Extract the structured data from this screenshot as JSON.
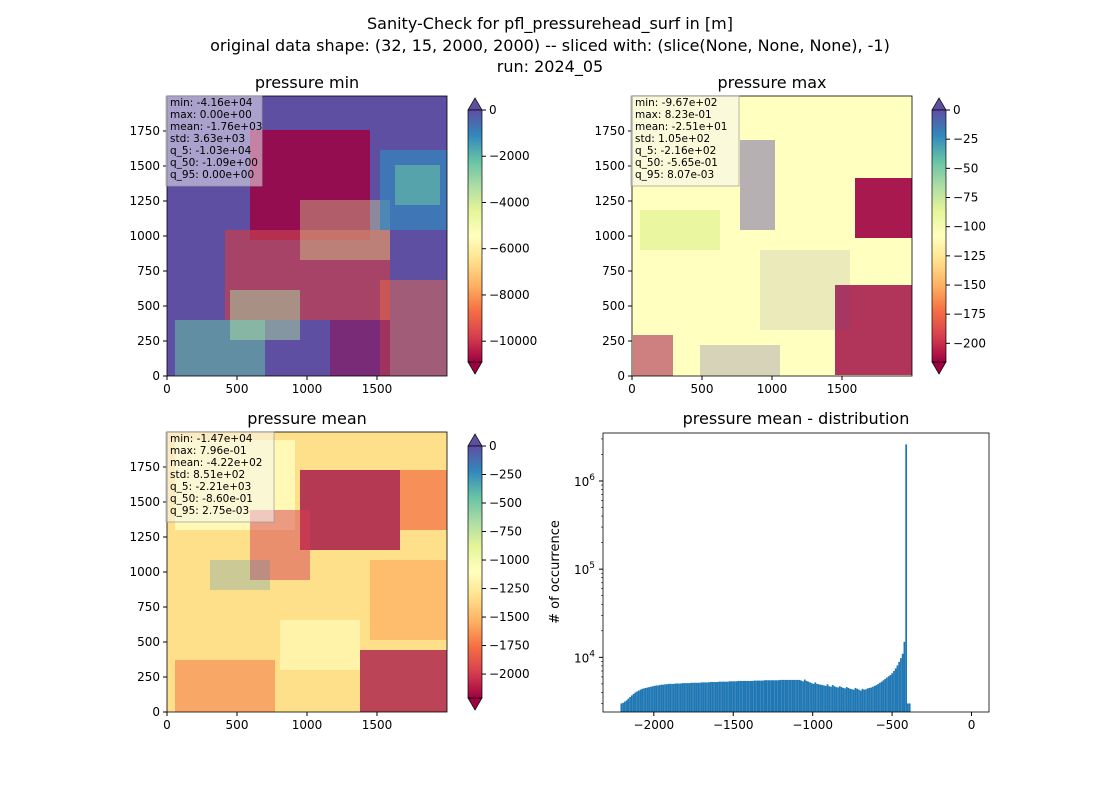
{
  "figure": {
    "title_lines": [
      "Sanity-Check for pfl_pressurehead_surf in [m]",
      "original data shape: (32, 15, 2000, 2000) -- sliced with: (slice(None, None, None), -1)",
      "run: 2024_05"
    ]
  },
  "colors": {
    "colormap": "Spectral",
    "cmap_stops": [
      "#9e0142",
      "#d53e4f",
      "#f46d43",
      "#fdae61",
      "#fee08b",
      "#ffffbf",
      "#e6f598",
      "#abdda4",
      "#66c2a5",
      "#3288bd",
      "#5e4fa2"
    ],
    "hist_bar": "#1f77b4",
    "stat_box_bg": "#f5f5f5"
  },
  "chart_data": [
    {
      "type": "heatmap",
      "title": "pressure min",
      "x_range": [
        0,
        2000
      ],
      "y_range": [
        0,
        2000
      ],
      "x_ticks": [
        "0",
        "500",
        "1000",
        "1500"
      ],
      "y_ticks": [
        "0",
        "250",
        "500",
        "750",
        "1000",
        "1250",
        "1500",
        "1750"
      ],
      "colorbar": {
        "range": [
          -10900,
          0
        ],
        "ticks": [
          {
            "value": 0,
            "label": "0"
          },
          {
            "value": -2000,
            "label": "−2000"
          },
          {
            "value": -4000,
            "label": "−4000"
          },
          {
            "value": -6000,
            "label": "−6000"
          },
          {
            "value": -8000,
            "label": "−8000"
          },
          {
            "value": -10000,
            "label": "−10000"
          }
        ],
        "extend": "both"
      },
      "stats": [
        "min: -4.16e+04",
        "max: 0.00e+00",
        "mean: -1.76e+03",
        "std: 3.63e+03",
        "q_5: -1.03e+04",
        "q_50: -1.09e+00",
        "q_95: 0.00e+00"
      ]
    },
    {
      "type": "heatmap",
      "title": "pressure max",
      "x_range": [
        0,
        2000
      ],
      "y_range": [
        0,
        2000
      ],
      "x_ticks": [
        "0",
        "500",
        "1000",
        "1500"
      ],
      "y_ticks": [
        "0",
        "250",
        "500",
        "750",
        "1000",
        "1250",
        "1500",
        "1750"
      ],
      "colorbar": {
        "range": [
          -216,
          0
        ],
        "ticks": [
          {
            "value": 0,
            "label": "0"
          },
          {
            "value": -25,
            "label": "−25"
          },
          {
            "value": -50,
            "label": "−50"
          },
          {
            "value": -75,
            "label": "−75"
          },
          {
            "value": -100,
            "label": "−100"
          },
          {
            "value": -125,
            "label": "−125"
          },
          {
            "value": -150,
            "label": "−150"
          },
          {
            "value": -175,
            "label": "−175"
          },
          {
            "value": -200,
            "label": "−200"
          }
        ],
        "extend": "both"
      },
      "stats": [
        "min: -9.67e+02",
        "max: 8.23e-01",
        "mean: -2.51e+01",
        "std: 1.05e+02",
        "q_5: -2.16e+02",
        "q_50: -5.65e-01",
        "q_95: 8.07e-03"
      ]
    },
    {
      "type": "heatmap",
      "title": "pressure mean",
      "x_range": [
        0,
        2000
      ],
      "y_range": [
        0,
        2000
      ],
      "x_ticks": [
        "0",
        "500",
        "1000",
        "1500"
      ],
      "y_ticks": [
        "0",
        "250",
        "500",
        "750",
        "1000",
        "1250",
        "1500",
        "1750"
      ],
      "colorbar": {
        "range": [
          -2210,
          0
        ],
        "ticks": [
          {
            "value": 0,
            "label": "0"
          },
          {
            "value": -250,
            "label": "−250"
          },
          {
            "value": -500,
            "label": "−500"
          },
          {
            "value": -750,
            "label": "−750"
          },
          {
            "value": -1000,
            "label": "−1000"
          },
          {
            "value": -1250,
            "label": "−1250"
          },
          {
            "value": -1500,
            "label": "−1500"
          },
          {
            "value": -1750,
            "label": "−1750"
          },
          {
            "value": -2000,
            "label": "−2000"
          }
        ],
        "extend": "both"
      },
      "stats": [
        "min: -1.47e+04",
        "max: 7.96e-01",
        "mean: -4.22e+02",
        "std: 8.51e+02",
        "q_5: -2.21e+03",
        "q_50: -8.60e-01",
        "q_95: 2.75e-03"
      ]
    },
    {
      "type": "bar",
      "subtype": "histogram",
      "title": "pressure mean - distribution",
      "ylabel": "# of occurrence",
      "yscale": "log",
      "xlim": [
        -2320,
        110
      ],
      "ylim": [
        2400,
        3500000
      ],
      "x_ticks": [
        {
          "value": -2000,
          "label": "−2000"
        },
        {
          "value": -1500,
          "label": "−1500"
        },
        {
          "value": -1000,
          "label": "−1000"
        },
        {
          "value": -500,
          "label": "−500"
        },
        {
          "value": 0,
          "label": "0"
        }
      ],
      "y_ticks": [
        {
          "value": 10000,
          "base": "10",
          "exp": "4"
        },
        {
          "value": 100000,
          "base": "10",
          "exp": "5"
        },
        {
          "value": 1000000,
          "base": "10",
          "exp": "6"
        }
      ],
      "bin_start": -2210,
      "bin_width": 11,
      "counts": [
        3000,
        3050,
        3150,
        3250,
        3400,
        3550,
        3700,
        3850,
        4000,
        4100,
        4200,
        4300,
        4400,
        4450,
        4500,
        4550,
        4600,
        4650,
        4700,
        4750,
        4800,
        4800,
        4850,
        4900,
        4900,
        4950,
        4950,
        5000,
        5000,
        5000,
        5000,
        5050,
        5050,
        5050,
        5050,
        5100,
        5100,
        5100,
        5100,
        5100,
        5150,
        5150,
        5150,
        5150,
        5150,
        5150,
        5200,
        5200,
        5200,
        5200,
        5200,
        5250,
        5250,
        5250,
        5250,
        5250,
        5300,
        5300,
        5300,
        5300,
        5300,
        5300,
        5350,
        5350,
        5350,
        5350,
        5350,
        5400,
        5400,
        5400,
        5400,
        5400,
        5400,
        5400,
        5400,
        5400,
        5450,
        5450,
        5450,
        5450,
        5450,
        5450,
        5500,
        5500,
        5500,
        5500,
        5500,
        5500,
        5500,
        5500,
        5500,
        5550,
        5550,
        5550,
        5550,
        5550,
        5550,
        5550,
        5550,
        5550,
        5550,
        5550,
        5550,
        5450,
        5350,
        5600,
        5400,
        5300,
        5200,
        5100,
        5000,
        5200,
        5000,
        4950,
        4900,
        4850,
        4800,
        4750,
        4950,
        4700,
        4650,
        4850,
        4700,
        4600,
        4550,
        4700,
        4600,
        4500,
        4450,
        4600,
        4500,
        4400,
        4350,
        4300,
        4500,
        4400,
        4300,
        4200,
        4400,
        4300,
        4350,
        4450,
        4500,
        4550,
        4650,
        4750,
        4850,
        5000,
        5150,
        5300,
        5500,
        5700,
        5900,
        6100,
        6300,
        6600,
        7000,
        7500,
        8100,
        8900,
        9800,
        11000,
        15000,
        2600000,
        3000,
        3000
      ]
    }
  ]
}
